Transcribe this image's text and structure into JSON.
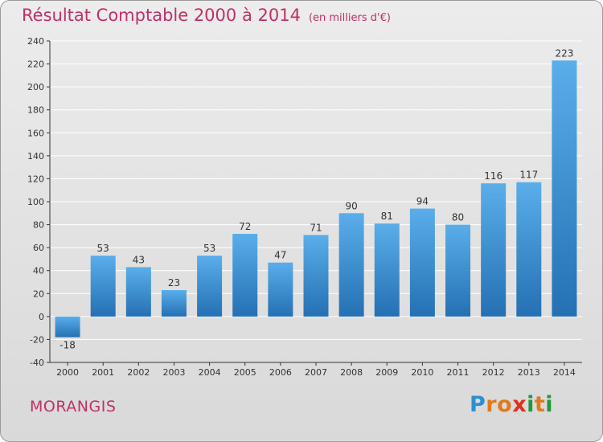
{
  "title": "Résultat Comptable 2000 à 2014",
  "subtitle": "(en milliers d'€)",
  "city": "MORANGIS",
  "brand": {
    "letters": [
      "P",
      "r",
      "o",
      "x",
      "i",
      "t",
      "i"
    ],
    "colors": [
      "#2d8fd0",
      "#e07a1d",
      "#e07a1d",
      "#e0301e",
      "#1e9a3a",
      "#e07a1d",
      "#1e9a3a"
    ]
  },
  "colors": {
    "accent": "#c0306a",
    "bar_top": "#5aaeea",
    "bar_bottom": "#2470b3",
    "axis": "#333333",
    "grid": "#ffffff"
  },
  "chart_data": {
    "type": "bar",
    "categories": [
      "2000",
      "2001",
      "2002",
      "2003",
      "2004",
      "2005",
      "2006",
      "2007",
      "2008",
      "2009",
      "2010",
      "2011",
      "2012",
      "2013",
      "2014"
    ],
    "values": [
      -18,
      53,
      43,
      23,
      53,
      72,
      47,
      71,
      90,
      81,
      94,
      80,
      116,
      117,
      223
    ],
    "title": "Résultat Comptable 2000 à 2014",
    "ylabel": "en milliers d'€",
    "ylim": [
      -40,
      240
    ],
    "yticks": [
      -40,
      -20,
      0,
      20,
      40,
      60,
      80,
      100,
      120,
      140,
      160,
      180,
      200,
      220,
      240
    ],
    "grid": true,
    "legend": "none"
  }
}
